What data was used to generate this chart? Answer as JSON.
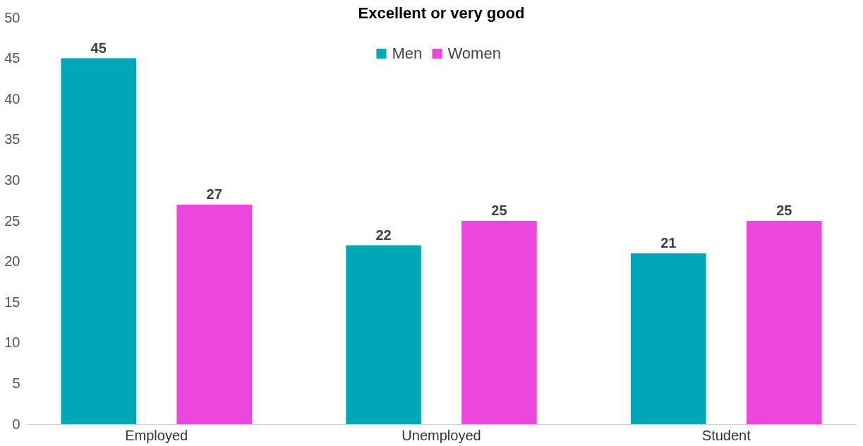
{
  "chart_data": {
    "type": "bar",
    "title": "Excellent or very good",
    "categories": [
      "Employed",
      "Unemployed",
      "Student"
    ],
    "series": [
      {
        "name": "Men",
        "color": "#00a7b6",
        "values": [
          45,
          22,
          21
        ]
      },
      {
        "name": "Women",
        "color": "#ec46dc",
        "values": [
          27,
          25,
          25
        ]
      }
    ],
    "ylim": [
      0,
      50
    ],
    "yticks": [
      0,
      5,
      10,
      15,
      20,
      25,
      30,
      35,
      40,
      45,
      50
    ],
    "grid": false,
    "legend": "top",
    "data_labels": true
  }
}
